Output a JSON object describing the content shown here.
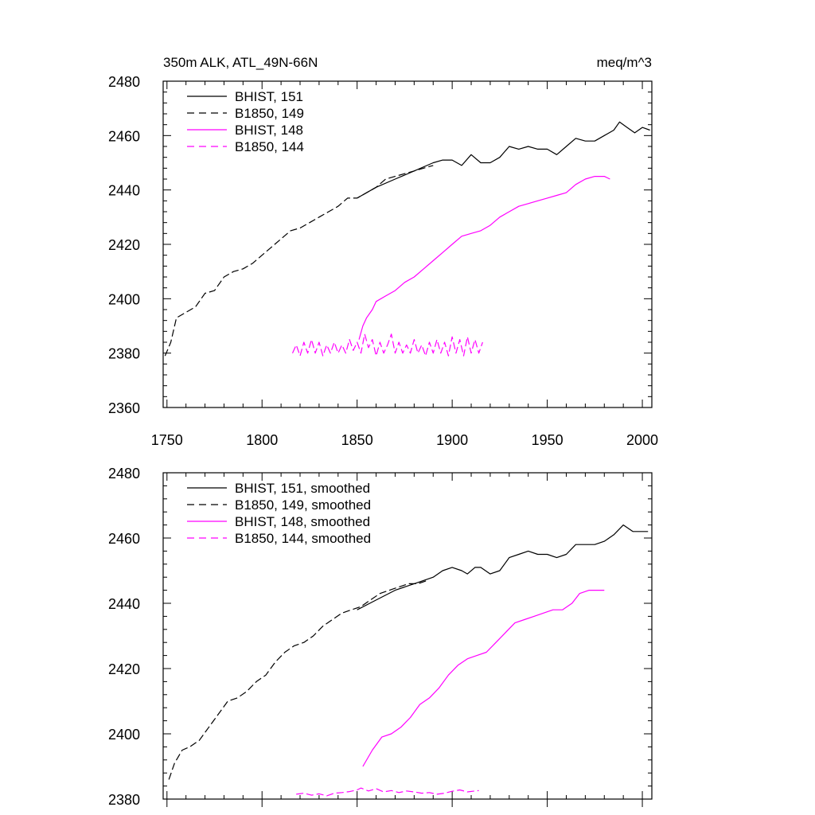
{
  "chart_data": [
    {
      "type": "line",
      "title": "350m ALK, ATL_49N-66N",
      "units": "meq/m^3",
      "xlim": [
        1748,
        2005
      ],
      "ylim": [
        2360,
        2480
      ],
      "x_ticks": [
        "1750",
        "1800",
        "1850",
        "1900",
        "1950",
        "2000"
      ],
      "y_ticks": [
        "2360",
        "2380",
        "2400",
        "2420",
        "2440",
        "2460",
        "2480"
      ],
      "grid": false,
      "legend_placement": "top-left",
      "series": [
        {
          "name": "BHIST, 151",
          "color": "#000000",
          "style": "solid",
          "points": [
            [
              1850,
              2437
            ],
            [
              1860,
              2441
            ],
            [
              1870,
              2444
            ],
            [
              1880,
              2447
            ],
            [
              1890,
              2450
            ],
            [
              1895,
              2451
            ],
            [
              1900,
              2451
            ],
            [
              1905,
              2449
            ],
            [
              1910,
              2453
            ],
            [
              1915,
              2450
            ],
            [
              1920,
              2450
            ],
            [
              1925,
              2452
            ],
            [
              1930,
              2456
            ],
            [
              1935,
              2455
            ],
            [
              1940,
              2456
            ],
            [
              1945,
              2455
            ],
            [
              1950,
              2455
            ],
            [
              1955,
              2453
            ],
            [
              1960,
              2456
            ],
            [
              1965,
              2459
            ],
            [
              1970,
              2458
            ],
            [
              1975,
              2458
            ],
            [
              1980,
              2460
            ],
            [
              1985,
              2462
            ],
            [
              1988,
              2465
            ],
            [
              1992,
              2463
            ],
            [
              1996,
              2461
            ],
            [
              2000,
              2463
            ],
            [
              2004,
              2462
            ]
          ]
        },
        {
          "name": "B1850, 149",
          "color": "#000000",
          "style": "dashed",
          "points": [
            [
              1749,
              2379
            ],
            [
              1752,
              2384
            ],
            [
              1755,
              2393
            ],
            [
              1760,
              2395
            ],
            [
              1765,
              2397
            ],
            [
              1770,
              2402
            ],
            [
              1775,
              2403
            ],
            [
              1780,
              2408
            ],
            [
              1785,
              2410
            ],
            [
              1790,
              2411
            ],
            [
              1795,
              2413
            ],
            [
              1800,
              2416
            ],
            [
              1805,
              2419
            ],
            [
              1810,
              2422
            ],
            [
              1815,
              2425
            ],
            [
              1820,
              2426
            ],
            [
              1825,
              2428
            ],
            [
              1830,
              2430
            ],
            [
              1835,
              2432
            ],
            [
              1840,
              2434
            ],
            [
              1845,
              2437
            ],
            [
              1850,
              2437
            ],
            [
              1855,
              2439
            ],
            [
              1860,
              2441
            ],
            [
              1865,
              2444
            ],
            [
              1870,
              2445
            ],
            [
              1875,
              2446
            ],
            [
              1880,
              2447
            ],
            [
              1885,
              2448
            ],
            [
              1890,
              2449
            ]
          ]
        },
        {
          "name": "BHIST, 148",
          "color": "#ff00ff",
          "style": "solid",
          "points": [
            [
              1851,
              2385
            ],
            [
              1853,
              2390
            ],
            [
              1855,
              2393
            ],
            [
              1858,
              2396
            ],
            [
              1860,
              2399
            ],
            [
              1865,
              2401
            ],
            [
              1870,
              2403
            ],
            [
              1875,
              2406
            ],
            [
              1880,
              2408
            ],
            [
              1885,
              2411
            ],
            [
              1890,
              2414
            ],
            [
              1895,
              2417
            ],
            [
              1900,
              2420
            ],
            [
              1905,
              2423
            ],
            [
              1910,
              2424
            ],
            [
              1915,
              2425
            ],
            [
              1920,
              2427
            ],
            [
              1925,
              2430
            ],
            [
              1930,
              2432
            ],
            [
              1935,
              2434
            ],
            [
              1940,
              2435
            ],
            [
              1945,
              2436
            ],
            [
              1950,
              2437
            ],
            [
              1955,
              2438
            ],
            [
              1960,
              2439
            ],
            [
              1965,
              2442
            ],
            [
              1970,
              2444
            ],
            [
              1975,
              2445
            ],
            [
              1980,
              2445
            ],
            [
              1983,
              2444
            ]
          ]
        },
        {
          "name": "B1850, 144",
          "color": "#ff00ff",
          "style": "dashed",
          "points": [
            [
              1816,
              2380
            ],
            [
              1818,
              2383
            ],
            [
              1820,
              2379
            ],
            [
              1822,
              2384
            ],
            [
              1824,
              2380
            ],
            [
              1826,
              2385
            ],
            [
              1828,
              2380
            ],
            [
              1830,
              2384
            ],
            [
              1832,
              2379
            ],
            [
              1834,
              2383
            ],
            [
              1836,
              2380
            ],
            [
              1838,
              2384
            ],
            [
              1840,
              2380
            ],
            [
              1842,
              2383
            ],
            [
              1844,
              2380
            ],
            [
              1846,
              2385
            ],
            [
              1848,
              2381
            ],
            [
              1850,
              2384
            ],
            [
              1852,
              2380
            ],
            [
              1854,
              2387
            ],
            [
              1856,
              2382
            ],
            [
              1858,
              2385
            ],
            [
              1860,
              2379
            ],
            [
              1862,
              2384
            ],
            [
              1864,
              2380
            ],
            [
              1866,
              2383
            ],
            [
              1868,
              2387
            ],
            [
              1870,
              2380
            ],
            [
              1872,
              2384
            ],
            [
              1874,
              2380
            ],
            [
              1876,
              2383
            ],
            [
              1878,
              2380
            ],
            [
              1880,
              2385
            ],
            [
              1882,
              2380
            ],
            [
              1884,
              2383
            ],
            [
              1886,
              2379
            ],
            [
              1888,
              2384
            ],
            [
              1890,
              2380
            ],
            [
              1892,
              2385
            ],
            [
              1894,
              2380
            ],
            [
              1896,
              2384
            ],
            [
              1898,
              2379
            ],
            [
              1900,
              2386
            ],
            [
              1902,
              2380
            ],
            [
              1904,
              2385
            ],
            [
              1906,
              2379
            ],
            [
              1908,
              2386
            ],
            [
              1910,
              2380
            ],
            [
              1912,
              2385
            ],
            [
              1914,
              2380
            ],
            [
              1916,
              2384
            ]
          ]
        }
      ]
    },
    {
      "type": "line",
      "xlim": [
        1748,
        2005
      ],
      "ylim": [
        2380,
        2480
      ],
      "y_ticks": [
        "2380",
        "2400",
        "2420",
        "2440",
        "2460",
        "2480"
      ],
      "grid": false,
      "legend_placement": "top-left",
      "series": [
        {
          "name": "BHIST, 151, smoothed",
          "color": "#000000",
          "style": "solid",
          "points": [
            [
              1850,
              2438
            ],
            [
              1860,
              2441
            ],
            [
              1870,
              2444
            ],
            [
              1880,
              2446
            ],
            [
              1890,
              2448
            ],
            [
              1895,
              2450
            ],
            [
              1900,
              2451
            ],
            [
              1905,
              2450
            ],
            [
              1908,
              2449
            ],
            [
              1912,
              2451
            ],
            [
              1915,
              2451
            ],
            [
              1920,
              2449
            ],
            [
              1925,
              2450
            ],
            [
              1930,
              2454
            ],
            [
              1935,
              2455
            ],
            [
              1940,
              2456
            ],
            [
              1945,
              2455
            ],
            [
              1950,
              2455
            ],
            [
              1955,
              2454
            ],
            [
              1960,
              2455
            ],
            [
              1965,
              2458
            ],
            [
              1970,
              2458
            ],
            [
              1975,
              2458
            ],
            [
              1980,
              2459
            ],
            [
              1985,
              2461
            ],
            [
              1990,
              2464
            ],
            [
              1995,
              2462
            ],
            [
              2000,
              2462
            ],
            [
              2003,
              2462
            ]
          ]
        },
        {
          "name": "B1850, 149, smoothed",
          "color": "#000000",
          "style": "dashed",
          "points": [
            [
              1751,
              2386
            ],
            [
              1754,
              2391
            ],
            [
              1758,
              2395
            ],
            [
              1762,
              2396
            ],
            [
              1767,
              2398
            ],
            [
              1772,
              2402
            ],
            [
              1777,
              2406
            ],
            [
              1782,
              2410
            ],
            [
              1787,
              2411
            ],
            [
              1792,
              2413
            ],
            [
              1797,
              2416
            ],
            [
              1802,
              2418
            ],
            [
              1807,
              2422
            ],
            [
              1812,
              2425
            ],
            [
              1817,
              2427
            ],
            [
              1822,
              2428
            ],
            [
              1827,
              2430
            ],
            [
              1832,
              2433
            ],
            [
              1837,
              2435
            ],
            [
              1842,
              2437
            ],
            [
              1847,
              2438
            ],
            [
              1852,
              2439
            ],
            [
              1857,
              2441
            ],
            [
              1862,
              2443
            ],
            [
              1867,
              2444
            ],
            [
              1872,
              2445
            ],
            [
              1877,
              2446
            ],
            [
              1882,
              2446
            ],
            [
              1887,
              2447
            ]
          ]
        },
        {
          "name": "BHIST, 148, smoothed",
          "color": "#ff00ff",
          "style": "solid",
          "points": [
            [
              1853,
              2390
            ],
            [
              1858,
              2395
            ],
            [
              1863,
              2399
            ],
            [
              1868,
              2400
            ],
            [
              1873,
              2402
            ],
            [
              1878,
              2405
            ],
            [
              1883,
              2409
            ],
            [
              1888,
              2411
            ],
            [
              1893,
              2414
            ],
            [
              1898,
              2418
            ],
            [
              1903,
              2421
            ],
            [
              1908,
              2423
            ],
            [
              1913,
              2424
            ],
            [
              1918,
              2425
            ],
            [
              1923,
              2428
            ],
            [
              1928,
              2431
            ],
            [
              1933,
              2434
            ],
            [
              1938,
              2435
            ],
            [
              1943,
              2436
            ],
            [
              1948,
              2437
            ],
            [
              1953,
              2438
            ],
            [
              1958,
              2438
            ],
            [
              1963,
              2440
            ],
            [
              1967,
              2443
            ],
            [
              1972,
              2444
            ],
            [
              1977,
              2444
            ],
            [
              1980,
              2444
            ]
          ]
        },
        {
          "name": "B1850, 144, smoothed",
          "color": "#ff00ff",
          "style": "dashed",
          "points": [
            [
              1818,
              2381.5
            ],
            [
              1822,
              2381.8
            ],
            [
              1826,
              2381.2
            ],
            [
              1830,
              2381.6
            ],
            [
              1834,
              2381
            ],
            [
              1838,
              2381.8
            ],
            [
              1842,
              2382
            ],
            [
              1846,
              2382.3
            ],
            [
              1850,
              2382.8
            ],
            [
              1852,
              2383.4
            ],
            [
              1856,
              2382.5
            ],
            [
              1860,
              2383.2
            ],
            [
              1864,
              2382.2
            ],
            [
              1868,
              2382.6
            ],
            [
              1872,
              2382
            ],
            [
              1876,
              2382.5
            ],
            [
              1880,
              2382.2
            ],
            [
              1884,
              2381.8
            ],
            [
              1888,
              2382
            ],
            [
              1892,
              2381.5
            ],
            [
              1896,
              2381.8
            ],
            [
              1900,
              2382.4
            ],
            [
              1904,
              2382.8
            ],
            [
              1908,
              2382.2
            ],
            [
              1912,
              2382.5
            ],
            [
              1914,
              2382.6
            ]
          ]
        }
      ]
    }
  ]
}
